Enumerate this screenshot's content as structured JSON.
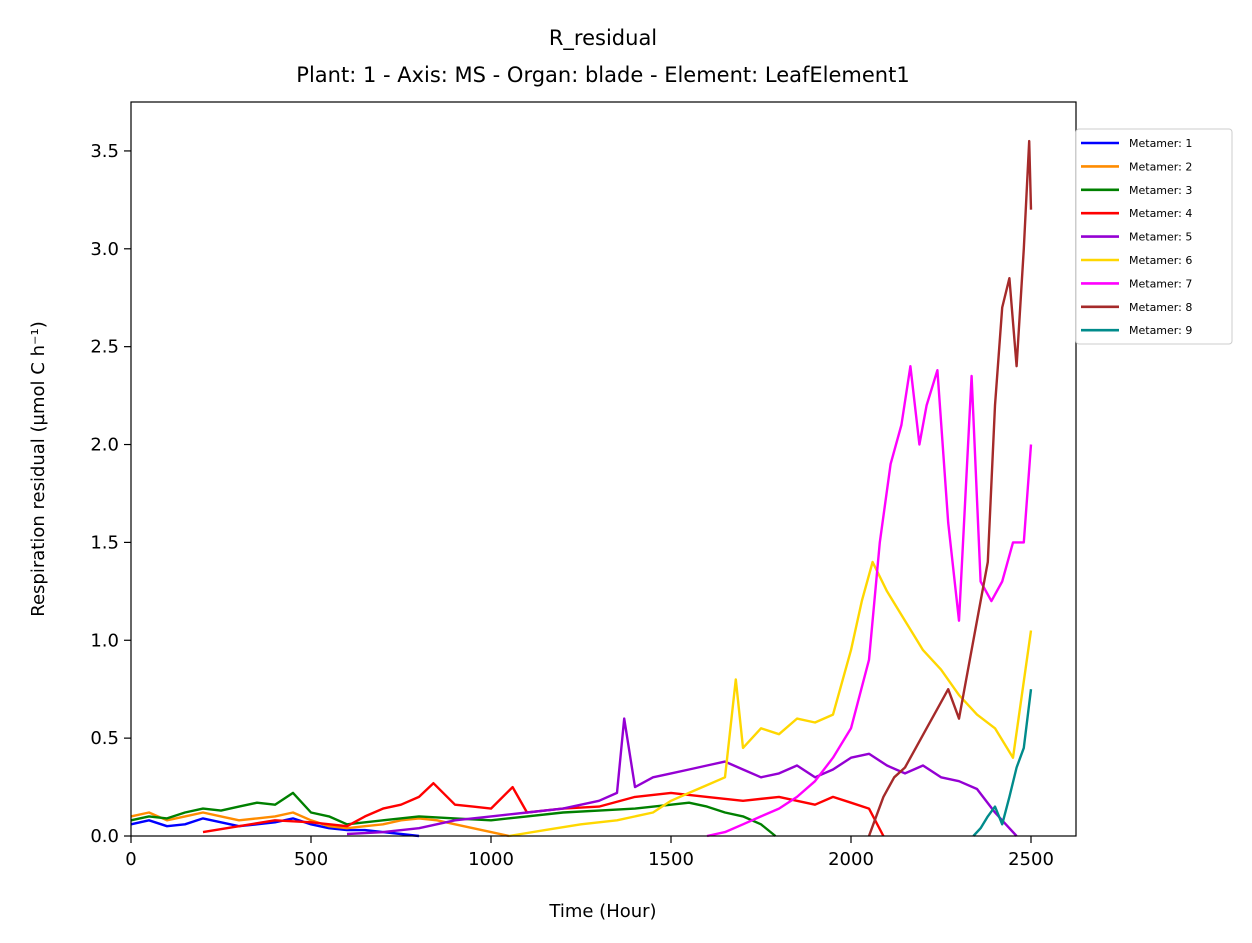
{
  "chart_data": {
    "type": "line",
    "title": "R_residual",
    "subtitle": "Plant: 1 - Axis: MS - Organ: blade - Element: LeafElement1",
    "xlabel": "Time (Hour)",
    "ylabel": "Respiration residual (µmol C h⁻¹)",
    "xlim": [
      0,
      2625
    ],
    "ylim": [
      0,
      3.75
    ],
    "xticks": [
      0,
      500,
      1000,
      1500,
      2000,
      2500
    ],
    "xtick_labels": [
      "0",
      "500",
      "1000",
      "1500",
      "2000",
      "2500"
    ],
    "yticks": [
      0,
      0.5,
      1.0,
      1.5,
      2.0,
      2.5,
      3.0,
      3.5
    ],
    "ytick_labels": [
      "0.0",
      "0.5",
      "1.0",
      "1.5",
      "2.0",
      "2.5",
      "3.0",
      "3.5"
    ],
    "grid": false,
    "legend_position": "outside-right-top",
    "series": [
      {
        "name": "Metamer: 1",
        "color": "#0000ff",
        "x": [
          0,
          50,
          100,
          150,
          200,
          250,
          300,
          350,
          400,
          450,
          500,
          550,
          600,
          650,
          700,
          750,
          800
        ],
        "y": [
          0.06,
          0.08,
          0.05,
          0.06,
          0.09,
          0.07,
          0.05,
          0.06,
          0.07,
          0.09,
          0.06,
          0.04,
          0.03,
          0.03,
          0.02,
          0.01,
          0.0
        ]
      },
      {
        "name": "Metamer: 2",
        "color": "#ff8c00",
        "x": [
          0,
          50,
          100,
          150,
          200,
          250,
          300,
          350,
          400,
          450,
          500,
          550,
          600,
          650,
          700,
          750,
          800,
          850,
          900,
          950,
          1000,
          1050
        ],
        "y": [
          0.1,
          0.12,
          0.08,
          0.1,
          0.12,
          0.1,
          0.08,
          0.09,
          0.1,
          0.12,
          0.08,
          0.05,
          0.04,
          0.05,
          0.06,
          0.08,
          0.09,
          0.08,
          0.06,
          0.04,
          0.02,
          0.0
        ]
      },
      {
        "name": "Metamer: 3",
        "color": "#008000",
        "x": [
          0,
          50,
          100,
          150,
          200,
          250,
          300,
          350,
          400,
          450,
          500,
          550,
          600,
          700,
          800,
          900,
          1000,
          1100,
          1200,
          1300,
          1400,
          1500,
          1550,
          1600,
          1650,
          1700,
          1750,
          1790
        ],
        "y": [
          0.08,
          0.1,
          0.09,
          0.12,
          0.14,
          0.13,
          0.15,
          0.17,
          0.16,
          0.22,
          0.12,
          0.1,
          0.06,
          0.08,
          0.1,
          0.09,
          0.08,
          0.1,
          0.12,
          0.13,
          0.14,
          0.16,
          0.17,
          0.15,
          0.12,
          0.1,
          0.06,
          0.0
        ]
      },
      {
        "name": "Metamer: 4",
        "color": "#ff0000",
        "x": [
          200,
          300,
          400,
          500,
          600,
          650,
          700,
          750,
          800,
          840,
          900,
          950,
          1000,
          1060,
          1100,
          1200,
          1300,
          1400,
          1500,
          1600,
          1700,
          1800,
          1900,
          1950,
          2000,
          2050,
          2090
        ],
        "y": [
          0.02,
          0.05,
          0.08,
          0.07,
          0.05,
          0.1,
          0.14,
          0.16,
          0.2,
          0.27,
          0.16,
          0.15,
          0.14,
          0.25,
          0.12,
          0.14,
          0.15,
          0.2,
          0.22,
          0.2,
          0.18,
          0.2,
          0.16,
          0.2,
          0.17,
          0.14,
          0.0
        ]
      },
      {
        "name": "Metamer: 5",
        "color": "#9400d3",
        "x": [
          600,
          700,
          800,
          900,
          1000,
          1100,
          1200,
          1300,
          1350,
          1370,
          1400,
          1450,
          1500,
          1550,
          1600,
          1650,
          1700,
          1750,
          1800,
          1850,
          1900,
          1950,
          2000,
          2050,
          2100,
          2150,
          2200,
          2250,
          2300,
          2350,
          2400,
          2430,
          2460
        ],
        "y": [
          0.01,
          0.02,
          0.04,
          0.08,
          0.1,
          0.12,
          0.14,
          0.18,
          0.22,
          0.6,
          0.25,
          0.3,
          0.32,
          0.34,
          0.36,
          0.38,
          0.34,
          0.3,
          0.32,
          0.36,
          0.3,
          0.34,
          0.4,
          0.42,
          0.36,
          0.32,
          0.36,
          0.3,
          0.28,
          0.24,
          0.12,
          0.06,
          0.0
        ]
      },
      {
        "name": "Metamer: 6",
        "color": "#ffd700",
        "x": [
          1050,
          1150,
          1250,
          1350,
          1450,
          1500,
          1550,
          1600,
          1650,
          1680,
          1700,
          1750,
          1800,
          1850,
          1900,
          1950,
          2000,
          2030,
          2060,
          2100,
          2150,
          2200,
          2250,
          2300,
          2350,
          2400,
          2450,
          2500
        ],
        "y": [
          0.0,
          0.03,
          0.06,
          0.08,
          0.12,
          0.18,
          0.22,
          0.26,
          0.3,
          0.8,
          0.45,
          0.55,
          0.52,
          0.6,
          0.58,
          0.62,
          0.95,
          1.2,
          1.4,
          1.25,
          1.1,
          0.95,
          0.85,
          0.72,
          0.62,
          0.55,
          0.4,
          1.05
        ]
      },
      {
        "name": "Metamer: 7",
        "color": "#ff00ff",
        "x": [
          1600,
          1650,
          1700,
          1750,
          1800,
          1850,
          1900,
          1950,
          2000,
          2050,
          2080,
          2110,
          2140,
          2165,
          2190,
          2210,
          2240,
          2270,
          2300,
          2335,
          2360,
          2390,
          2420,
          2450,
          2480,
          2500
        ],
        "y": [
          0.0,
          0.02,
          0.06,
          0.1,
          0.14,
          0.2,
          0.28,
          0.4,
          0.55,
          0.9,
          1.5,
          1.9,
          2.1,
          2.4,
          2.0,
          2.2,
          2.38,
          1.6,
          1.1,
          2.35,
          1.3,
          1.2,
          1.3,
          1.5,
          1.5,
          2.0
        ]
      },
      {
        "name": "Metamer: 8",
        "color": "#a52a2a",
        "x": [
          2050,
          2070,
          2090,
          2120,
          2150,
          2180,
          2210,
          2240,
          2270,
          2300,
          2330,
          2360,
          2380,
          2400,
          2420,
          2440,
          2460,
          2480,
          2495,
          2500
        ],
        "y": [
          0.0,
          0.1,
          0.2,
          0.3,
          0.35,
          0.45,
          0.55,
          0.65,
          0.75,
          0.6,
          0.9,
          1.2,
          1.4,
          2.2,
          2.7,
          2.85,
          2.4,
          3.0,
          3.55,
          3.2
        ]
      },
      {
        "name": "Metamer: 9",
        "color": "#008b8b",
        "x": [
          2340,
          2360,
          2380,
          2400,
          2420,
          2440,
          2460,
          2480,
          2500
        ],
        "y": [
          0.0,
          0.04,
          0.1,
          0.15,
          0.06,
          0.2,
          0.35,
          0.45,
          0.75
        ]
      }
    ]
  }
}
